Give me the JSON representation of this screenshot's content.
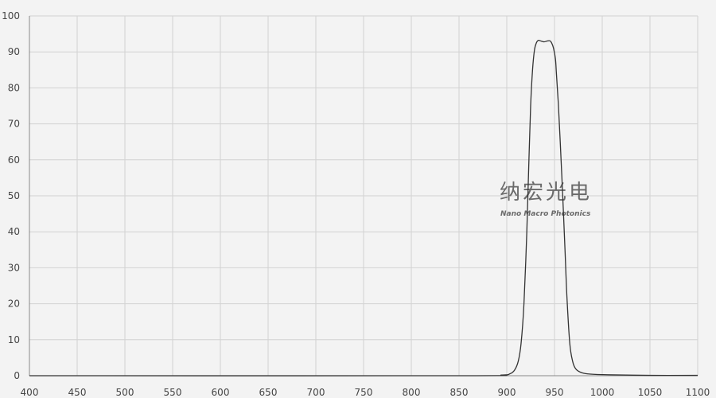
{
  "chart_data": {
    "type": "line",
    "title": "",
    "xlabel": "",
    "ylabel": "",
    "xlim": [
      400,
      1100
    ],
    "ylim": [
      0,
      100
    ],
    "xticks": [
      400,
      450,
      500,
      550,
      600,
      650,
      700,
      750,
      800,
      850,
      900,
      950,
      1000,
      1050,
      1100
    ],
    "yticks": [
      0,
      10,
      20,
      30,
      40,
      50,
      60,
      70,
      80,
      90,
      100
    ],
    "grid": true,
    "line_color": "#333333",
    "series": [
      {
        "x": [
          400,
          850,
          895,
          903,
          908,
          912,
          915,
          918,
          921,
          923,
          925,
          927,
          929,
          931,
          933,
          936,
          939,
          942,
          945,
          947,
          949,
          951,
          952,
          954,
          956,
          958.6,
          961,
          963,
          966,
          969,
          972,
          977,
          985,
          1000,
          1050,
          1100
        ],
        "y": [
          0,
          0,
          0.2,
          0.5,
          1.5,
          4,
          9,
          20,
          40,
          58,
          75,
          85,
          90.5,
          92.5,
          93.2,
          93,
          92.8,
          93,
          93.1,
          92.5,
          91,
          88,
          84,
          75.7,
          65,
          50,
          35,
          22,
          9,
          4,
          2,
          1,
          0.5,
          0.3,
          0.1,
          0.1
        ]
      }
    ],
    "watermark": {
      "cn": "纳宏光电",
      "en": "Nano Macro Photonics"
    }
  }
}
